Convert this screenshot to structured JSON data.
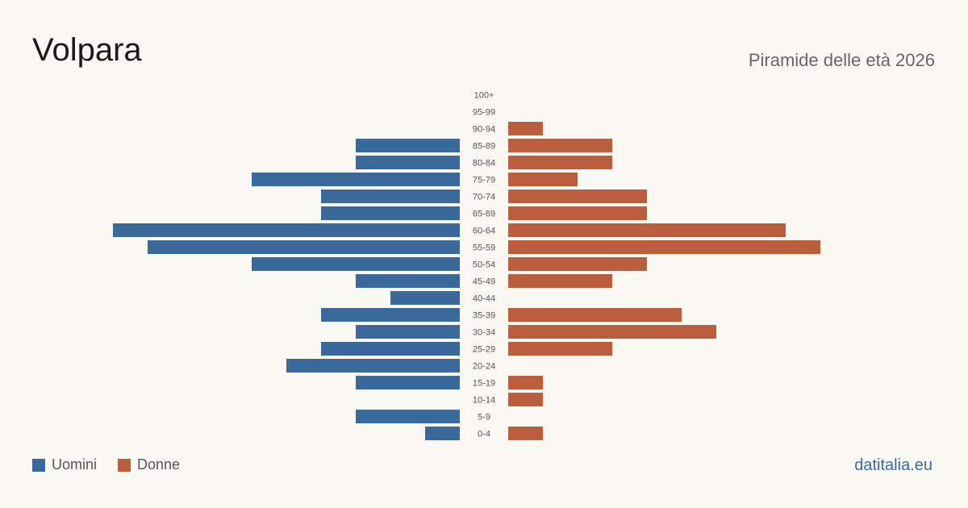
{
  "header": {
    "title": "Volpara",
    "subtitle": "Piramide delle età 2026"
  },
  "footer": {
    "site": "datitalia.eu"
  },
  "colors": {
    "men": "#3a6a9c",
    "women": "#bb5e3d",
    "tick_text": "#555555"
  },
  "chart_data": {
    "type": "bar",
    "orientation": "horizontal-pyramid",
    "categories": [
      "100+",
      "95-99",
      "90-94",
      "85-89",
      "80-84",
      "75-79",
      "70-74",
      "65-69",
      "60-64",
      "55-59",
      "50-54",
      "45-49",
      "40-44",
      "35-39",
      "30-34",
      "25-29",
      "20-24",
      "15-19",
      "10-14",
      "5-9",
      "0-4"
    ],
    "series": [
      {
        "name": "Uomini",
        "values": [
          0,
          0,
          0,
          3,
          3,
          6,
          4,
          4,
          10,
          9,
          6,
          3,
          2,
          4,
          3,
          4,
          5,
          3,
          0,
          3,
          1
        ]
      },
      {
        "name": "Donne",
        "values": [
          0,
          0,
          1,
          3,
          3,
          2,
          4,
          4,
          8,
          9,
          4,
          3,
          0,
          5,
          6,
          3,
          0,
          1,
          1,
          0,
          1
        ]
      }
    ],
    "legend_position": "bottom-left",
    "grid": false
  }
}
